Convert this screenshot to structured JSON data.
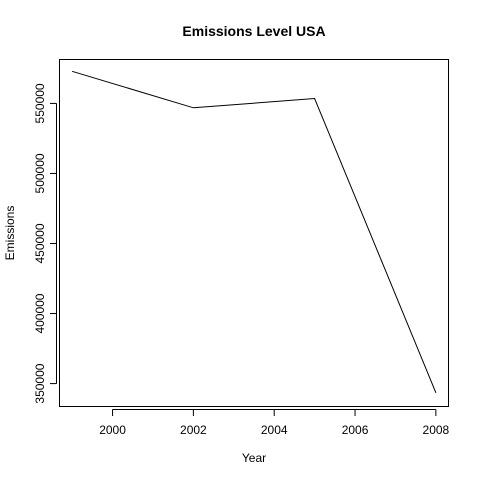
{
  "chart_data": {
    "type": "line",
    "title": "Emissions Level USA",
    "xlabel": "Year",
    "ylabel": "Emissions",
    "x": [
      1999,
      2002,
      2005,
      2008
    ],
    "series": [
      {
        "values": [
          572900,
          546900,
          553500,
          343400
        ]
      }
    ],
    "xlim": [
      1998.7,
      2008.3
    ],
    "ylim": [
      334000,
      581000
    ],
    "xticks": [
      2000,
      2002,
      2004,
      2006,
      2008
    ],
    "yticks": [
      350000,
      400000,
      450000,
      500000,
      550000
    ],
    "xtick_labels": [
      "2000",
      "2002",
      "2004",
      "2006",
      "2008"
    ],
    "ytick_labels": [
      "350000",
      "400000",
      "450000",
      "500000",
      "550000"
    ],
    "grid": false,
    "line_color": "#000000"
  }
}
